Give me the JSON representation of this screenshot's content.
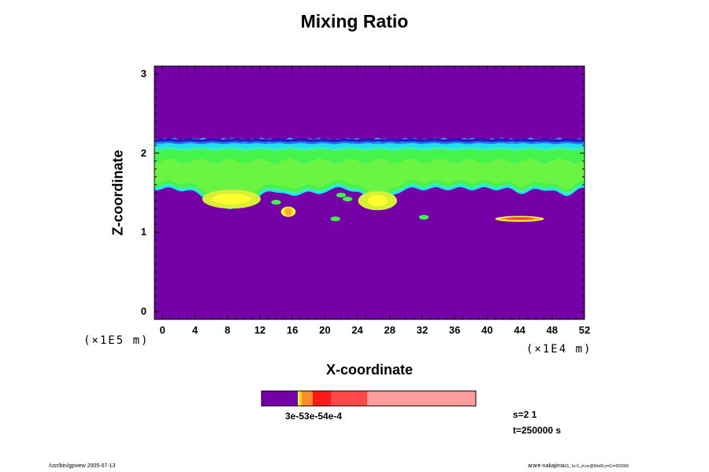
{
  "colors": {
    "background": "#7400a8",
    "band_dark_blue": "#1c1cc8",
    "band_blue": "#2f6fe8",
    "band_cyan": "#20e0f0",
    "band_aqua": "#3cf0b0",
    "band_green": "#44f44c",
    "band_light_green": "#8cf43c",
    "band_yellow_green": "#d8f034",
    "band_yellow": "#ffff30",
    "band_orange": "#ffb028",
    "band_red": "#ff4040",
    "band_pink": "#ff9c9c"
  },
  "chart_data": {
    "type": "heatmap",
    "title": "Mixing Ratio",
    "xlabel": "X-coordinate",
    "ylabel": "Z-coordinate",
    "x_scale_note": "(×1E4 m)",
    "y_scale_note": "(×1E5 m)",
    "xlim": [
      -1,
      52
    ],
    "ylim": [
      -0.1,
      3.1
    ],
    "x_ticks": [
      0,
      4,
      8,
      12,
      16,
      20,
      24,
      28,
      32,
      36,
      40,
      44,
      48,
      52
    ],
    "x_tick_labels": [
      "0",
      "4",
      "8",
      "12",
      "16",
      "20",
      "24",
      "28",
      "32",
      "36",
      "40",
      "44",
      "48",
      "52"
    ],
    "y_ticks": [
      0,
      1,
      2,
      3
    ],
    "y_tick_labels": [
      "0",
      "1",
      "2",
      "3"
    ],
    "field": {
      "background_level": "lowest (purple)",
      "upper_layer": {
        "z_top": 2.18,
        "z_bottom": 1.55,
        "description": "green cloud layer capped by thin blue/cyan top"
      },
      "top_band": {
        "z_top": 2.18,
        "z_bottom": 2.08
      },
      "blobs": [
        {
          "x": 8.5,
          "z": 1.42,
          "level": "yellow"
        },
        {
          "x": 15.5,
          "z": 1.26,
          "level": "orange"
        },
        {
          "x": 26.5,
          "z": 1.4,
          "level": "yellow"
        },
        {
          "x": 14,
          "z": 1.38,
          "level": "green"
        },
        {
          "x": 21.3,
          "z": 1.17,
          "level": "green"
        },
        {
          "x": 22,
          "z": 1.47,
          "level": "green"
        },
        {
          "x": 22.8,
          "z": 1.42,
          "level": "green"
        },
        {
          "x": 32.2,
          "z": 1.19,
          "level": "green"
        },
        {
          "x": 44,
          "z": 1.17,
          "level": "orange"
        }
      ]
    },
    "colorbar": {
      "segments": [
        {
          "color": "#7400a8",
          "width": 46
        },
        {
          "color": "#ffff30",
          "width": 2
        },
        {
          "color": "#ffd028",
          "width": 3
        },
        {
          "color": "#ff8c28",
          "width": 14
        },
        {
          "color": "#ff1818",
          "width": 23
        },
        {
          "color": "#ff4848",
          "width": 46
        },
        {
          "color": "#ff9c9c",
          "width": 138
        }
      ],
      "label": "3e-53e-54e-4"
    }
  },
  "info": {
    "s_label": "s=2 1",
    "t_label": "t=250000 s"
  },
  "footer": {
    "left": "/usr/bin/gpview 2005-07-13",
    "right_main": "arare-nakajima",
    "right_small": "01_1e-5_vt.nc@MixRt,z=0,t=250000"
  }
}
